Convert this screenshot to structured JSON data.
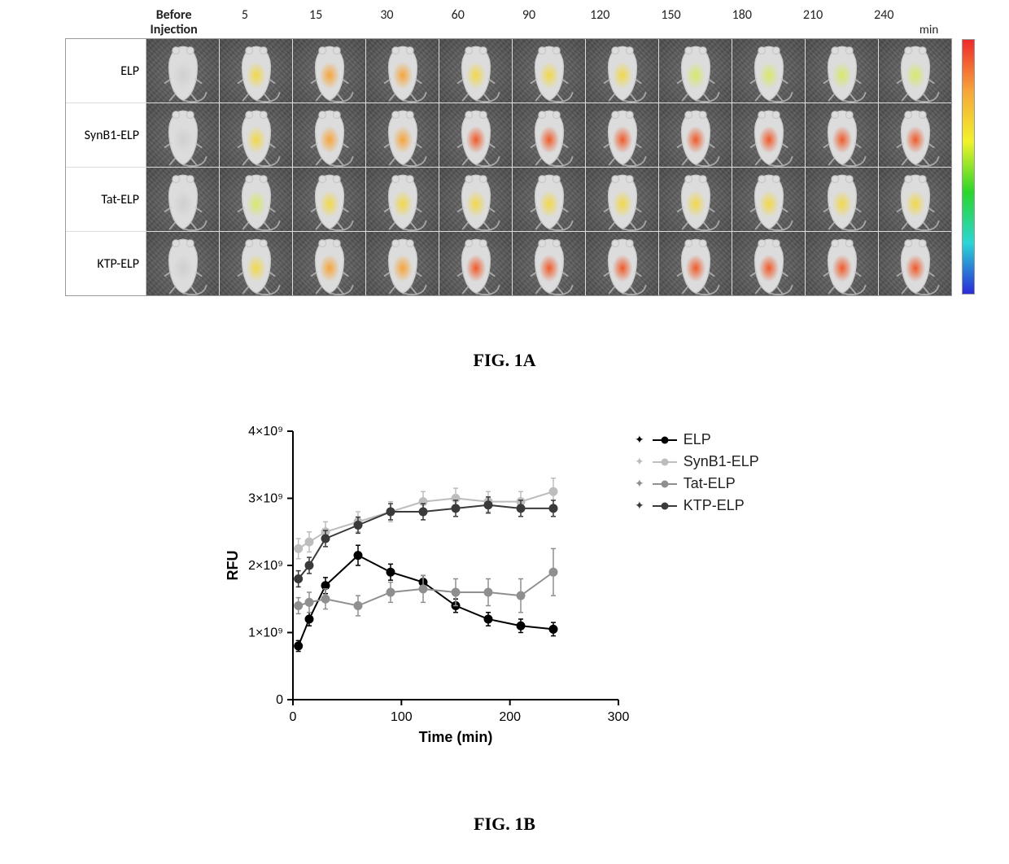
{
  "figure": {
    "caption_a": "FIG. 1A",
    "caption_b": "FIG. 1B"
  },
  "panelA": {
    "row_labels": [
      "ELP",
      "SynB1-ELP",
      "Tat-ELP",
      "KTP-ELP"
    ],
    "time_header_first": "Before\nInjection",
    "time_points": [
      "5",
      "15",
      "30",
      "60",
      "90",
      "120",
      "150",
      "180",
      "210",
      "240"
    ],
    "time_unit": "min",
    "cell_bg": "#5a5a5a",
    "grid_border": "#dcdcdc",
    "mouse_body_fill": "#dcdcdc",
    "mouse_body_stroke": "#c8c8c8",
    "signal_palette": {
      "none": {
        "inner": "#cfcfcf",
        "outer": "rgba(207,207,207,0)"
      },
      "low": {
        "inner": "#d9e86a",
        "outer": "rgba(214,232,106,0)"
      },
      "mid": {
        "inner": "#f2d84a",
        "outer": "rgba(242,216,74,0)"
      },
      "high": {
        "inner": "#f6a53a",
        "outer": "rgba(246,165,58,0)"
      },
      "vhigh": {
        "inner": "#ef5a2a",
        "outer": "rgba(239,90,42,0)"
      }
    },
    "intensity": {
      "ELP": [
        "none",
        "mid",
        "high",
        "high",
        "mid",
        "mid",
        "mid",
        "low",
        "low",
        "low",
        "low"
      ],
      "SynB1-ELP": [
        "none",
        "mid",
        "high",
        "high",
        "vhigh",
        "vhigh",
        "vhigh",
        "vhigh",
        "vhigh",
        "vhigh",
        "vhigh"
      ],
      "Tat-ELP": [
        "none",
        "low",
        "mid",
        "mid",
        "mid",
        "mid",
        "mid",
        "mid",
        "mid",
        "mid",
        "mid"
      ],
      "KTP-ELP": [
        "none",
        "mid",
        "high",
        "high",
        "vhigh",
        "vhigh",
        "vhigh",
        "vhigh",
        "vhigh",
        "vhigh",
        "vhigh"
      ]
    },
    "colorbar_stops": [
      "#2b2bd6",
      "#2bd6d6",
      "#2bd62b",
      "#f2f22b",
      "#f6a53a",
      "#ef2a2a"
    ]
  },
  "panelB": {
    "type": "line-errorbar",
    "xlabel": "Time (min)",
    "ylabel": "RFU",
    "xlim": [
      0,
      300
    ],
    "ylim": [
      0,
      4000000000.0
    ],
    "xticks": [
      0,
      100,
      200,
      300
    ],
    "yticks": [
      0,
      1000000000.0,
      2000000000.0,
      3000000000.0,
      4000000000.0
    ],
    "ytick_labels": [
      "0",
      "1×10⁹",
      "2×10⁹",
      "3×10⁹",
      "4×10⁹"
    ],
    "axis_color": "#000000",
    "tick_fontsize": 16,
    "label_fontsize": 18,
    "marker_size": 5,
    "line_width": 2,
    "errorbar_width": 6,
    "plot_bg": "#ffffff",
    "series": [
      {
        "name": "ELP",
        "color": "#000000",
        "x": [
          5,
          15,
          30,
          60,
          90,
          120,
          150,
          180,
          210,
          240
        ],
        "y": [
          800000000.0,
          1200000000.0,
          1700000000.0,
          2150000000.0,
          1900000000.0,
          1750000000.0,
          1400000000.0,
          1200000000.0,
          1100000000.0,
          1050000000.0
        ],
        "err": [
          80000000.0,
          100000000.0,
          120000000.0,
          150000000.0,
          120000000.0,
          100000000.0,
          100000000.0,
          100000000.0,
          100000000.0,
          100000000.0
        ]
      },
      {
        "name": "SynB1-ELP",
        "color": "#bdbdbd",
        "x": [
          5,
          15,
          30,
          60,
          90,
          120,
          150,
          180,
          210,
          240
        ],
        "y": [
          2250000000.0,
          2350000000.0,
          2500000000.0,
          2650000000.0,
          2800000000.0,
          2950000000.0,
          3000000000.0,
          2950000000.0,
          2950000000.0,
          3100000000.0
        ],
        "err": [
          150000000.0,
          150000000.0,
          150000000.0,
          150000000.0,
          150000000.0,
          150000000.0,
          150000000.0,
          150000000.0,
          150000000.0,
          200000000.0
        ]
      },
      {
        "name": "Tat-ELP",
        "color": "#8f8f8f",
        "x": [
          5,
          15,
          30,
          60,
          90,
          120,
          150,
          180,
          210,
          240
        ],
        "y": [
          1400000000.0,
          1450000000.0,
          1500000000.0,
          1400000000.0,
          1600000000.0,
          1650000000.0,
          1600000000.0,
          1600000000.0,
          1550000000.0,
          1900000000.0
        ],
        "err": [
          120000000.0,
          150000000.0,
          150000000.0,
          150000000.0,
          150000000.0,
          200000000.0,
          200000000.0,
          200000000.0,
          250000000.0,
          350000000.0
        ]
      },
      {
        "name": "KTP-ELP",
        "color": "#3a3a3a",
        "x": [
          5,
          15,
          30,
          60,
          90,
          120,
          150,
          180,
          210,
          240
        ],
        "y": [
          1800000000.0,
          2000000000.0,
          2400000000.0,
          2600000000.0,
          2800000000.0,
          2800000000.0,
          2850000000.0,
          2900000000.0,
          2850000000.0,
          2850000000.0
        ],
        "err": [
          120000000.0,
          120000000.0,
          120000000.0,
          120000000.0,
          120000000.0,
          120000000.0,
          120000000.0,
          120000000.0,
          120000000.0,
          120000000.0
        ]
      }
    ]
  }
}
